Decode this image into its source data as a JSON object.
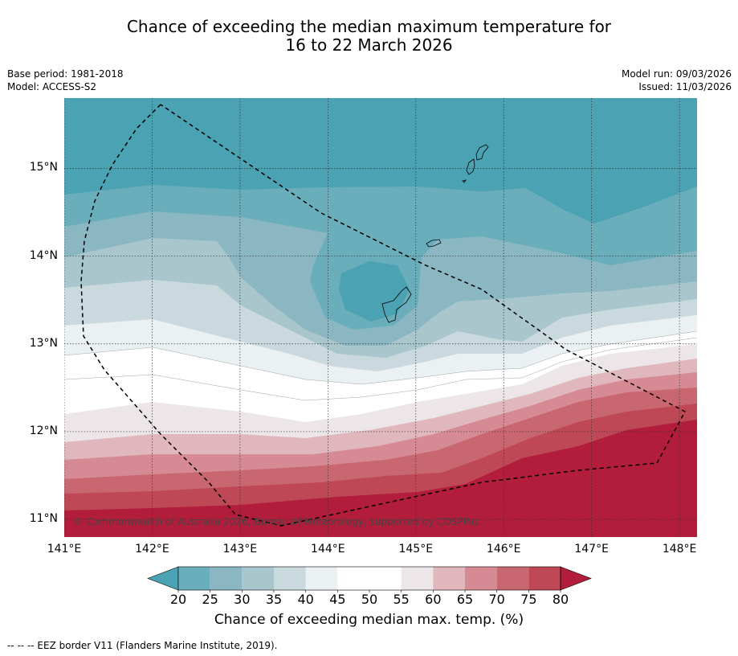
{
  "title": {
    "line1": "Chance of exceeding the median maximum temperature for",
    "line2": "16 to 22 March 2026"
  },
  "meta": {
    "base_period": "Base period: 1981-2018",
    "model": "Model: ACCESS-S2",
    "model_run": "Model run: 09/03/2026",
    "issued": "Issued: 11/03/2026"
  },
  "map": {
    "copyright": "© Commonwealth of Australia 2026, Bureau of Meteorology, supported by COSPPac",
    "lon_range": [
      141,
      148.2
    ],
    "lat_range": [
      10.8,
      15.8
    ],
    "lon_ticks": [
      {
        "value": 141,
        "label": "141°E"
      },
      {
        "value": 142,
        "label": "142°E"
      },
      {
        "value": 143,
        "label": "143°E"
      },
      {
        "value": 144,
        "label": "144°E"
      },
      {
        "value": 145,
        "label": "145°E"
      },
      {
        "value": 146,
        "label": "146°E"
      },
      {
        "value": 147,
        "label": "147°E"
      },
      {
        "value": 148,
        "label": "148°E"
      }
    ],
    "lat_ticks": [
      {
        "value": 15,
        "label": "15°N"
      },
      {
        "value": 14,
        "label": "14°N"
      },
      {
        "value": 13,
        "label": "13°N"
      },
      {
        "value": 12,
        "label": "12°N"
      },
      {
        "value": 11,
        "label": "11°N"
      }
    ]
  },
  "colorbar": {
    "title": "Chance of exceeding median max. temp. (%)",
    "ticks": [
      "20",
      "25",
      "30",
      "35",
      "40",
      "45",
      "50",
      "55",
      "60",
      "65",
      "70",
      "75",
      "80"
    ],
    "under_color": "#4aa2b2",
    "over_color": "#b11d3b",
    "colors": [
      "#6aadbb",
      "#8ab7c2",
      "#a8c6cc",
      "#c9d9de",
      "#ebf0f2",
      "#ffffff",
      "#ffffff",
      "#ece6e8",
      "#e0b7bd",
      "#d68b94",
      "#c96770",
      "#be4856"
    ]
  },
  "footer": "-- -- -- EEZ border V11 (Flanders Marine Institute, 2019)."
}
